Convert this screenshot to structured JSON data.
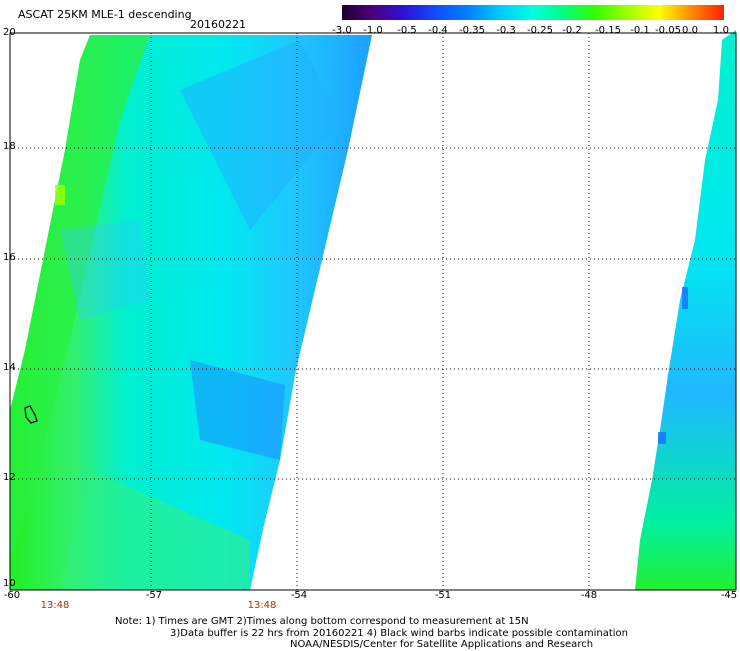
{
  "header": {
    "title": "ASCAT 25KM MLE-1 descending",
    "date": "20160221"
  },
  "colorbar": {
    "labels": [
      "-3.0",
      "-1.0",
      "-0.5",
      "-0.4",
      "-0.35",
      "-0.3",
      "-0.25",
      "-0.2",
      "-0.15",
      "-0.1",
      "-0.05",
      "0.0",
      "1.0"
    ],
    "colors": [
      "#200030",
      "#4b0080",
      "#2c10d8",
      "#1050ff",
      "#0080ff",
      "#00c8ff",
      "#00ffe0",
      "#00ff80",
      "#30ff00",
      "#a0ff00",
      "#ffff00",
      "#ff9000",
      "#ff2000"
    ]
  },
  "map": {
    "lat_labels": [
      "20",
      "18",
      "16",
      "14",
      "12",
      "10"
    ],
    "lon_labels": [
      "-60",
      "-57",
      "-54",
      "-51",
      "-48",
      "-45"
    ],
    "times": [
      "13:48",
      "13:48"
    ],
    "swath_colors": {
      "green": "#22f022",
      "cyan": "#00f0f0",
      "blue": "#20b8ff",
      "deep_blue": "#1870ff"
    }
  },
  "notes": {
    "line1": "Note: 1) Times are GMT 2)Times along bottom correspond to measurement at 15N",
    "line2": "3)Data buffer is 22 hrs from 20160221 4) Black wind barbs indicate possible contamination",
    "line3": "NOAA/NESDIS/Center for Satellite Applications and Research"
  }
}
